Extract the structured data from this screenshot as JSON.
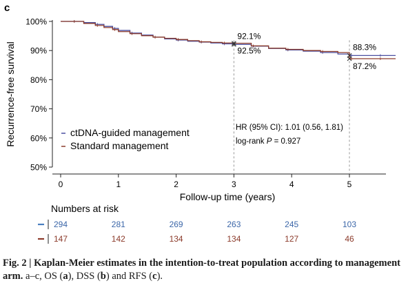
{
  "chart_data": {
    "type": "line",
    "panel_label": "c",
    "ylabel": "Recurrence-free survival",
    "xlabel": "Follow-up time (years)",
    "xlim": [
      0,
      5.8
    ],
    "ylim": [
      50,
      100
    ],
    "x_ticks": [
      "0",
      "1",
      "2",
      "3",
      "4",
      "5"
    ],
    "y_ticks": [
      "50%",
      "60%",
      "70%",
      "80%",
      "90%",
      "100%"
    ],
    "y_tick_values": [
      50,
      60,
      70,
      80,
      90,
      100
    ],
    "grid": false,
    "legend_position": "bottom-left",
    "series": [
      {
        "name": "ctDNA-guided management",
        "color": "#4a4fa0",
        "x": [
          0,
          0.2,
          0.4,
          0.6,
          0.75,
          0.9,
          1.0,
          1.2,
          1.4,
          1.6,
          1.8,
          2.0,
          2.2,
          2.4,
          2.6,
          2.8,
          3.0,
          3.3,
          3.6,
          3.9,
          4.2,
          4.5,
          4.8,
          5.0,
          5.2,
          5.5,
          5.8
        ],
        "y": [
          100,
          100,
          99.6,
          99.0,
          98.3,
          97.6,
          96.9,
          96.0,
          95.3,
          94.6,
          94.0,
          93.6,
          93.2,
          92.9,
          92.6,
          92.3,
          92.1,
          91.5,
          90.7,
          90.2,
          89.8,
          89.3,
          88.8,
          88.3,
          88.3,
          88.3,
          88.3
        ]
      },
      {
        "name": "Standard management",
        "color": "#8b3a2a",
        "x": [
          0,
          0.2,
          0.4,
          0.6,
          0.75,
          0.9,
          1.0,
          1.2,
          1.4,
          1.6,
          1.8,
          2.0,
          2.2,
          2.4,
          2.6,
          2.8,
          3.0,
          3.3,
          3.6,
          3.9,
          4.2,
          4.5,
          4.8,
          5.0,
          5.2,
          5.5,
          5.8
        ],
        "y": [
          100,
          100,
          99.3,
          98.6,
          97.9,
          97.2,
          96.5,
          95.8,
          95.1,
          94.6,
          94.2,
          93.8,
          93.4,
          93.0,
          92.8,
          92.6,
          92.5,
          91.6,
          90.8,
          90.4,
          90.0,
          89.7,
          89.3,
          87.2,
          87.2,
          87.2,
          87.2
        ]
      }
    ],
    "annotations": [
      {
        "x": 3,
        "y": 92.1,
        "text": "92.1%",
        "side": "above"
      },
      {
        "x": 3,
        "y": 92.5,
        "text": "92.5%",
        "side": "below"
      },
      {
        "x": 5,
        "y": 88.3,
        "text": "88.3%",
        "side": "above"
      },
      {
        "x": 5,
        "y": 87.2,
        "text": "87.2%",
        "side": "below"
      }
    ],
    "reference_lines_x": [
      3,
      5
    ],
    "stats_text": {
      "hr": "HR (95% CI): 1.01 (0.56, 1.81)",
      "logrank_prefix": "log-rank ",
      "logrank_p": "P",
      "logrank_suffix": " = 0.927"
    },
    "risk_table": {
      "title": "Numbers at risk",
      "rows": [
        {
          "color": "#4a7fc0",
          "text_color": "#3b66a8",
          "values": [
            "294",
            "281",
            "269",
            "263",
            "245",
            "103"
          ]
        },
        {
          "color": "#8b3a2a",
          "text_color": "#8b3a2a",
          "values": [
            "147",
            "142",
            "134",
            "134",
            "127",
            "46"
          ]
        }
      ]
    }
  },
  "caption": {
    "bold": "Fig. 2 | Kaplan-Meier estimates in the intention-to-treat population according to management arm.",
    "text1": " a–c, OS (",
    "a": "a",
    "text2": "), DSS (",
    "b": "b",
    "text3": ") and RFS (",
    "c": "c",
    "text4": ")."
  }
}
